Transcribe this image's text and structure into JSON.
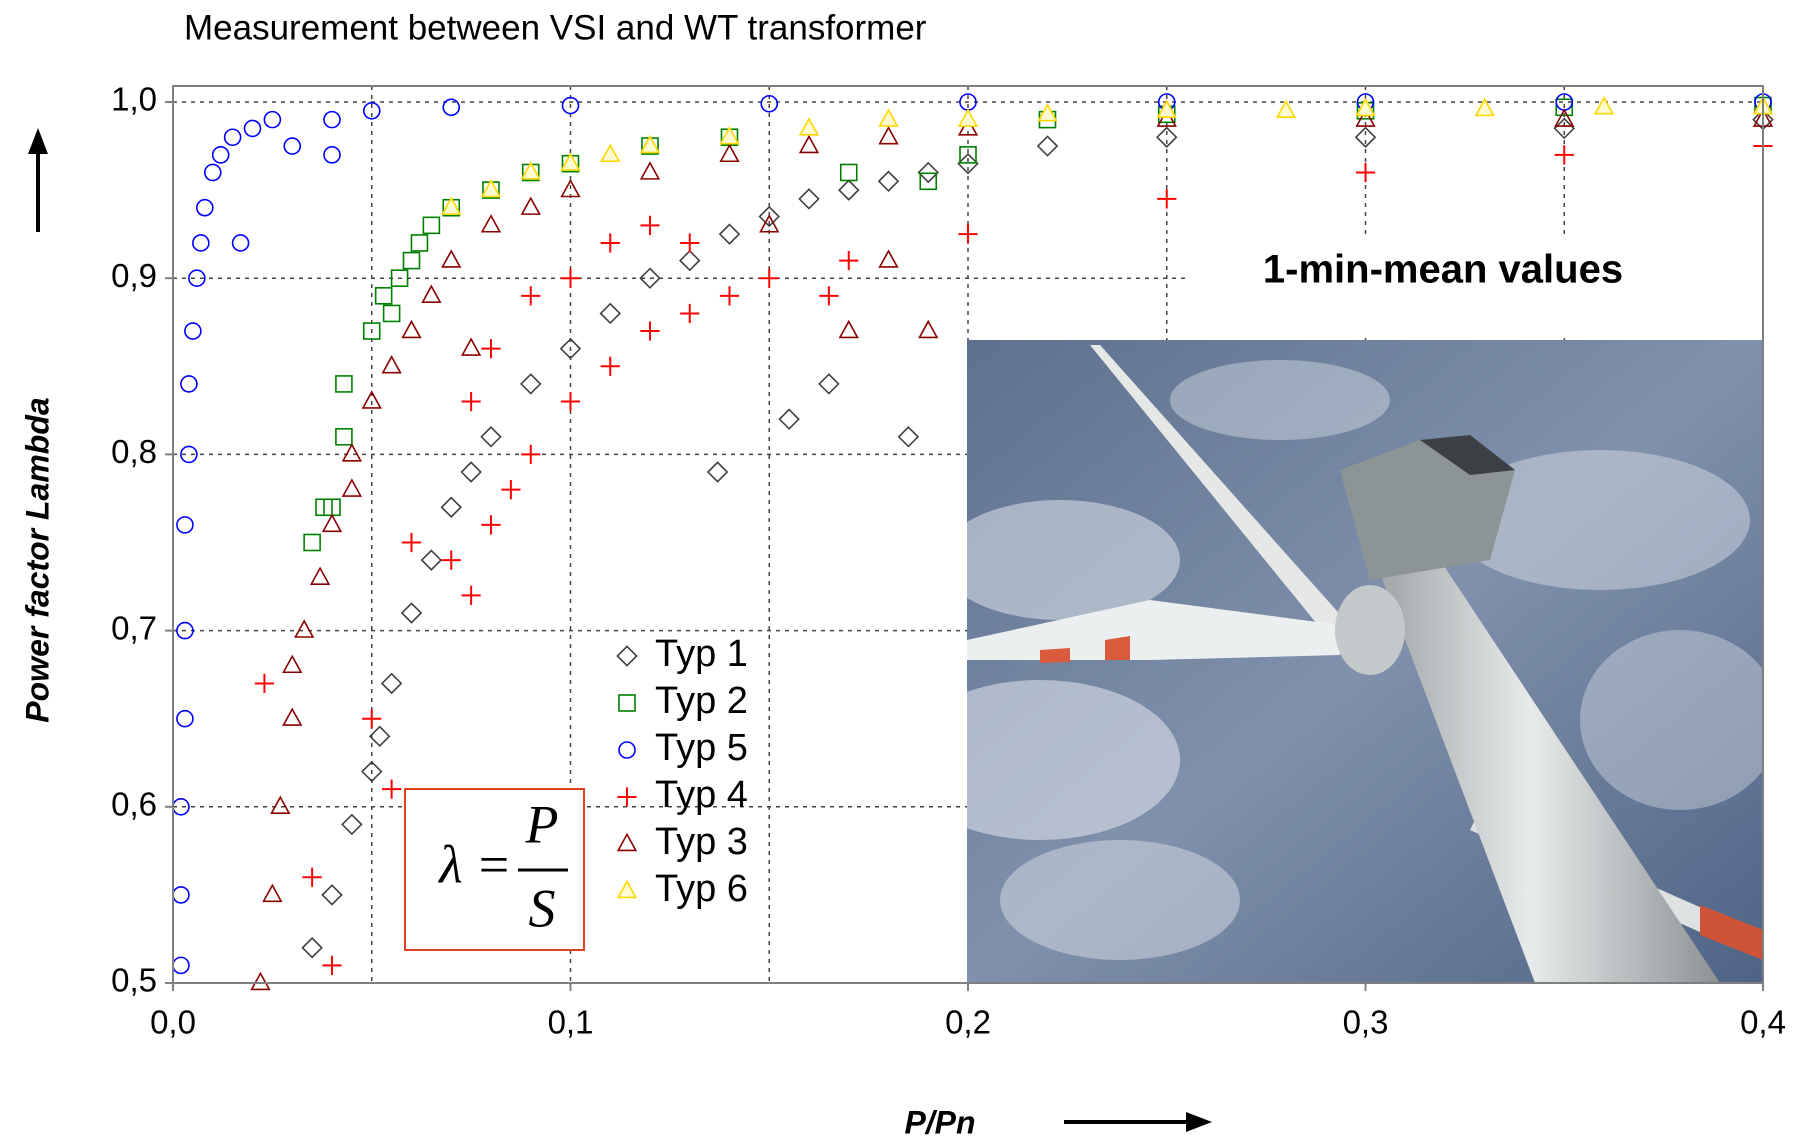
{
  "chart_data": {
    "type": "scatter",
    "title": "Measurement between VSI and WT transformer",
    "x_label": "P/Pn",
    "y_label": "Power factor Lambda",
    "annotation": "1-min-mean values",
    "formula": {
      "lhs": "λ",
      "equals": "=",
      "numerator": "P",
      "denominator": "S"
    },
    "xlim": [
      0,
      0.4
    ],
    "ylim": [
      0.5,
      1.0
    ],
    "xticks": [
      {
        "value": 0,
        "label": "0,0"
      },
      {
        "value": 0.1,
        "label": "0,1"
      },
      {
        "value": 0.2,
        "label": "0,2"
      },
      {
        "value": 0.3,
        "label": "0,3"
      },
      {
        "value": 0.4,
        "label": "0,4"
      }
    ],
    "yticks": [
      {
        "value": 0.5,
        "label": "0,5"
      },
      {
        "value": 0.6,
        "label": "0,6"
      },
      {
        "value": 0.7,
        "label": "0,7"
      },
      {
        "value": 0.8,
        "label": "0,8"
      },
      {
        "value": 0.9,
        "label": "0,9"
      },
      {
        "value": 1.0,
        "label": "1,0"
      }
    ],
    "xgrid": [
      0.05,
      0.1,
      0.15,
      0.2,
      0.25,
      0.3,
      0.35
    ],
    "grid": true,
    "series": [
      {
        "name": "Typ 1",
        "color": "#404040",
        "marker": "diamond",
        "x": [
          0.035,
          0.04,
          0.045,
          0.05,
          0.052,
          0.055,
          0.06,
          0.065,
          0.07,
          0.075,
          0.08,
          0.09,
          0.1,
          0.11,
          0.12,
          0.13,
          0.14,
          0.15,
          0.16,
          0.17,
          0.18,
          0.19,
          0.2,
          0.22,
          0.25,
          0.3,
          0.35,
          0.4,
          0.137,
          0.155,
          0.165,
          0.185
        ],
        "values": [
          0.52,
          0.55,
          0.59,
          0.62,
          0.64,
          0.67,
          0.71,
          0.74,
          0.77,
          0.79,
          0.81,
          0.84,
          0.86,
          0.88,
          0.9,
          0.91,
          0.925,
          0.935,
          0.945,
          0.95,
          0.955,
          0.96,
          0.965,
          0.975,
          0.98,
          0.98,
          0.985,
          0.99,
          0.79,
          0.82,
          0.84,
          0.81
        ]
      },
      {
        "name": "Typ 2",
        "color": "#008000",
        "marker": "square",
        "x": [
          0.035,
          0.038,
          0.04,
          0.043,
          0.043,
          0.05,
          0.053,
          0.057,
          0.06,
          0.065,
          0.07,
          0.08,
          0.09,
          0.1,
          0.12,
          0.14,
          0.17,
          0.19,
          0.2,
          0.22,
          0.25,
          0.3,
          0.35,
          0.4,
          0.055,
          0.062
        ],
        "values": [
          0.75,
          0.77,
          0.77,
          0.81,
          0.84,
          0.87,
          0.89,
          0.9,
          0.91,
          0.93,
          0.94,
          0.95,
          0.96,
          0.965,
          0.975,
          0.98,
          0.96,
          0.955,
          0.97,
          0.99,
          0.993,
          0.995,
          0.997,
          0.998,
          0.88,
          0.92
        ]
      },
      {
        "name": "Typ 5",
        "color": "#0000ff",
        "marker": "circle",
        "x": [
          0.002,
          0.002,
          0.002,
          0.003,
          0.003,
          0.003,
          0.004,
          0.004,
          0.005,
          0.006,
          0.007,
          0.008,
          0.01,
          0.012,
          0.015,
          0.02,
          0.025,
          0.03,
          0.04,
          0.05,
          0.07,
          0.1,
          0.15,
          0.2,
          0.25,
          0.3,
          0.35,
          0.4,
          0.017,
          0.04
        ],
        "values": [
          0.51,
          0.55,
          0.6,
          0.65,
          0.7,
          0.76,
          0.8,
          0.84,
          0.87,
          0.9,
          0.92,
          0.94,
          0.96,
          0.97,
          0.98,
          0.985,
          0.99,
          0.975,
          0.99,
          0.995,
          0.997,
          0.998,
          0.999,
          1.0,
          1.0,
          1.0,
          1.0,
          1.0,
          0.92,
          0.97
        ]
      },
      {
        "name": "Typ 4",
        "color": "#ff0000",
        "marker": "plus",
        "x": [
          0.023,
          0.04,
          0.035,
          0.05,
          0.055,
          0.06,
          0.07,
          0.075,
          0.08,
          0.085,
          0.09,
          0.1,
          0.11,
          0.12,
          0.13,
          0.14,
          0.15,
          0.17,
          0.2,
          0.25,
          0.3,
          0.35,
          0.4,
          0.075,
          0.08,
          0.09,
          0.1,
          0.11,
          0.12,
          0.13,
          0.165
        ],
        "values": [
          0.67,
          0.51,
          0.56,
          0.65,
          0.61,
          0.75,
          0.74,
          0.72,
          0.76,
          0.78,
          0.8,
          0.83,
          0.85,
          0.87,
          0.88,
          0.89,
          0.9,
          0.91,
          0.925,
          0.945,
          0.96,
          0.97,
          0.975,
          0.83,
          0.86,
          0.89,
          0.9,
          0.92,
          0.93,
          0.92,
          0.89
        ]
      },
      {
        "name": "Typ 3",
        "color": "#8b0000",
        "marker": "triangle",
        "x": [
          0.022,
          0.025,
          0.027,
          0.03,
          0.033,
          0.037,
          0.04,
          0.045,
          0.05,
          0.055,
          0.06,
          0.065,
          0.07,
          0.08,
          0.09,
          0.1,
          0.12,
          0.14,
          0.15,
          0.16,
          0.18,
          0.2,
          0.25,
          0.3,
          0.35,
          0.4,
          0.17,
          0.18,
          0.19,
          0.075,
          0.03,
          0.045
        ],
        "values": [
          0.5,
          0.55,
          0.6,
          0.65,
          0.7,
          0.73,
          0.76,
          0.8,
          0.83,
          0.85,
          0.87,
          0.89,
          0.91,
          0.93,
          0.94,
          0.95,
          0.96,
          0.97,
          0.93,
          0.975,
          0.98,
          0.985,
          0.99,
          0.99,
          0.99,
          0.99,
          0.87,
          0.91,
          0.87,
          0.86,
          0.68,
          0.78
        ]
      },
      {
        "name": "Typ 6",
        "color": "#ffd700",
        "marker": "triangle",
        "x": [
          0.07,
          0.08,
          0.09,
          0.1,
          0.11,
          0.12,
          0.14,
          0.16,
          0.18,
          0.2,
          0.22,
          0.25,
          0.28,
          0.3,
          0.33,
          0.36,
          0.4
        ],
        "values": [
          0.94,
          0.95,
          0.96,
          0.965,
          0.97,
          0.975,
          0.98,
          0.985,
          0.99,
          0.99,
          0.993,
          0.995,
          0.995,
          0.996,
          0.996,
          0.997,
          0.997
        ]
      }
    ]
  }
}
